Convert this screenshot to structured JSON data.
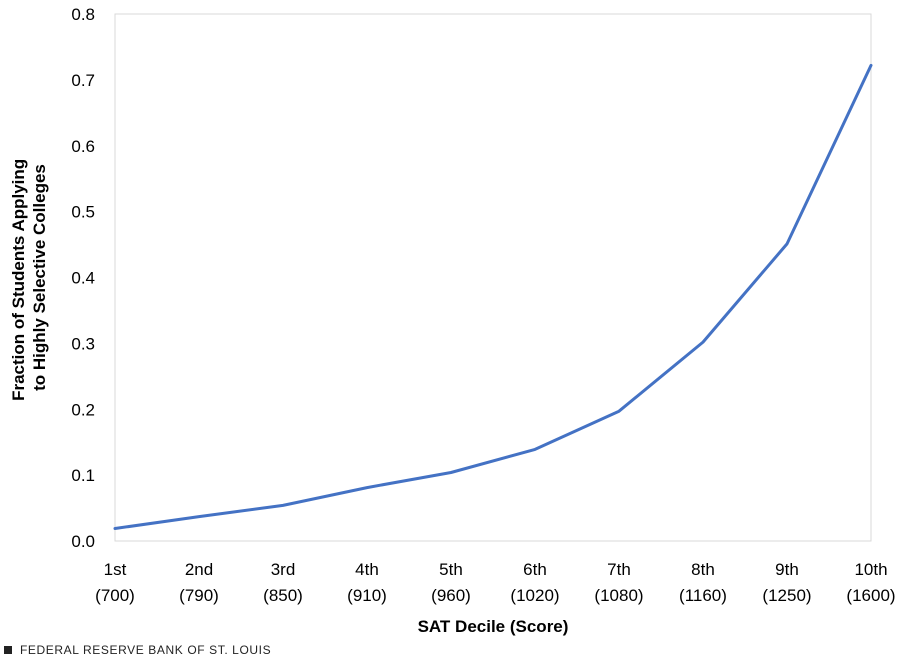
{
  "chart_data": {
    "type": "line",
    "title": "",
    "xlabel": "SAT Decile (Score)",
    "ylabel_lines": [
      "Fraction of Students Applying",
      "to Highly Selective Colleges"
    ],
    "categories": [
      {
        "decile": "1st",
        "score": "(700)"
      },
      {
        "decile": "2nd",
        "score": "(790)"
      },
      {
        "decile": "3rd",
        "score": "(850)"
      },
      {
        "decile": "4th",
        "score": "(910)"
      },
      {
        "decile": "5th",
        "score": "(960)"
      },
      {
        "decile": "6th",
        "score": "(1020)"
      },
      {
        "decile": "7th",
        "score": "(1080)"
      },
      {
        "decile": "8th",
        "score": "(1160)"
      },
      {
        "decile": "9th",
        "score": "(1250)"
      },
      {
        "decile": "10th",
        "score": "(1600)"
      }
    ],
    "series": [
      {
        "name": "Fraction applying",
        "color": "#4472c4",
        "values": [
          0.019,
          0.037,
          0.054,
          0.081,
          0.104,
          0.139,
          0.197,
          0.302,
          0.451,
          0.722
        ]
      }
    ],
    "yticks": [
      "0.0",
      "0.1",
      "0.2",
      "0.3",
      "0.4",
      "0.5",
      "0.6",
      "0.7",
      "0.8"
    ],
    "ylim": [
      0,
      0.8
    ],
    "grid": false
  },
  "footer": {
    "source": "FEDERAL RESERVE BANK OF ST. LOUIS"
  }
}
